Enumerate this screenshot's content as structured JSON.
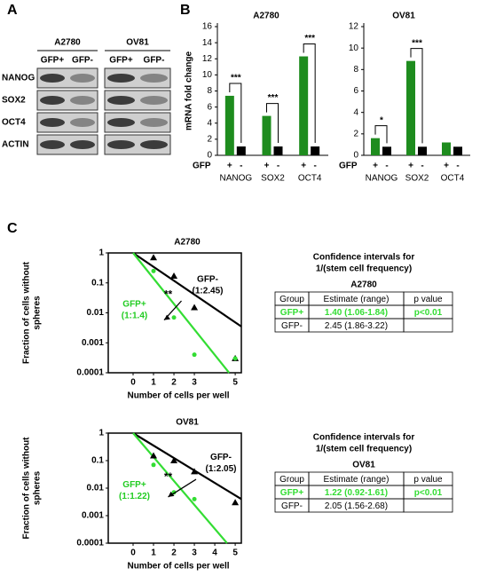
{
  "panel_labels": [
    "A",
    "B",
    "C"
  ],
  "blot": {
    "cell_lines": [
      "A2780",
      "OV81"
    ],
    "lanes": [
      "GFP+",
      "GFP-"
    ],
    "rows": [
      "NANOG",
      "SOX2",
      "OCT4",
      "ACTIN"
    ]
  },
  "chart_data": [
    {
      "type": "bar",
      "title": "A2780",
      "ylabel": "mRNA fold change",
      "group_label": "GFP",
      "categories": [
        "NANOG",
        "SOX2",
        "OCT4"
      ],
      "series": [
        {
          "name": "+",
          "color": "#1e8c1e",
          "values": [
            7.4,
            4.9,
            12.3
          ]
        },
        {
          "name": "-",
          "color": "#000000",
          "values": [
            1.1,
            1.1,
            1.1
          ]
        }
      ],
      "significance": [
        "***",
        "***",
        "***"
      ],
      "ylim": [
        0,
        16
      ],
      "yticks": [
        0,
        2,
        4,
        6,
        8,
        10,
        12,
        14,
        16
      ]
    },
    {
      "type": "bar",
      "title": "OV81",
      "group_label": "GFP",
      "categories": [
        "NANOG",
        "SOX2",
        "OCT4"
      ],
      "series": [
        {
          "name": "+",
          "color": "#1e8c1e",
          "values": [
            1.6,
            8.8,
            1.2
          ]
        },
        {
          "name": "-",
          "color": "#000000",
          "values": [
            0.8,
            0.8,
            0.8
          ]
        }
      ],
      "significance": [
        "*",
        "***",
        null
      ],
      "ylim": [
        0,
        12
      ],
      "yticks": [
        0,
        2,
        4,
        6,
        8,
        10,
        12
      ]
    },
    {
      "type": "scatter",
      "title": "A2780",
      "ylabel": [
        "Fraction of cells without",
        "spheres"
      ],
      "xlabel": "Number of cells per well",
      "log_y": true,
      "xlim": [
        0,
        5.3
      ],
      "xticks": [
        0,
        1,
        2,
        3,
        5
      ],
      "ylim": [
        0.0001,
        1
      ],
      "yticks": [
        1,
        0.1,
        0.01,
        0.001,
        0.0001
      ],
      "series": [
        {
          "name": "GFP-",
          "ratio": "(1:2.45)",
          "color": "#000000",
          "marker": "triangle",
          "x": [
            1,
            2,
            3,
            5
          ],
          "values": [
            0.7,
            0.17,
            0.015,
            0.0003
          ]
        },
        {
          "name": "GFP+",
          "ratio": "(1:1.4)",
          "color": "#33dd33",
          "marker": "circle",
          "x": [
            1,
            2,
            3,
            5
          ],
          "values": [
            0.25,
            0.007,
            0.0004,
            0.0003
          ]
        }
      ],
      "fits": [
        {
          "color": "#000000",
          "x": [
            0,
            5.3
          ],
          "values": [
            1,
            0.0035
          ]
        },
        {
          "color": "#33dd33",
          "x": [
            0,
            4.7
          ],
          "values": [
            1,
            0.0001
          ]
        }
      ],
      "significance": "**"
    },
    {
      "type": "scatter",
      "title": "OV81",
      "ylabel": [
        "Fraction of cells without",
        "spheres"
      ],
      "xlabel": "Number of cells per well",
      "log_y": true,
      "xlim": [
        0,
        5.3
      ],
      "xticks": [
        0,
        1,
        2,
        3,
        4,
        5
      ],
      "ylim": [
        0.0001,
        1
      ],
      "yticks": [
        1,
        0.1,
        0.01,
        0.001,
        0.0001
      ],
      "series": [
        {
          "name": "GFP-",
          "ratio": "(1:2.05)",
          "color": "#000000",
          "marker": "triangle",
          "x": [
            1,
            2,
            3,
            5
          ],
          "values": [
            0.15,
            0.1,
            0.04,
            0.003
          ]
        },
        {
          "name": "GFP+",
          "ratio": "(1:1.22)",
          "color": "#33dd33",
          "marker": "circle",
          "x": [
            1,
            2,
            3
          ],
          "values": [
            0.07,
            0.007,
            0.004
          ]
        }
      ],
      "fits": [
        {
          "color": "#000000",
          "x": [
            0,
            5.3
          ],
          "values": [
            1,
            0.004
          ]
        },
        {
          "color": "#33dd33",
          "x": [
            0,
            4.6
          ],
          "values": [
            1,
            0.0001
          ]
        }
      ],
      "significance": "**"
    }
  ],
  "tables": [
    {
      "title": [
        "Confidence intervals for",
        "1/(stem cell frequency)"
      ],
      "subtitle": "A2780",
      "rows": [
        [
          "Group",
          "Estimate (range)",
          "p value"
        ],
        [
          "GFP+",
          "1.40 (1.06-1.84)",
          "p<0.01"
        ],
        [
          "GFP-",
          "2.45 (1.86-3.22)"
        ]
      ]
    },
    {
      "title": [
        "Confidence intervals for",
        "1/(stem cell frequency)"
      ],
      "subtitle": "OV81",
      "rows": [
        [
          "Group",
          "Estimate (range)",
          "p value"
        ],
        [
          "GFP+",
          "1.22 (0.92-1.61)",
          "p<0.01"
        ],
        [
          "GFP-",
          "2.05 (1.56-2.68)"
        ]
      ]
    }
  ]
}
